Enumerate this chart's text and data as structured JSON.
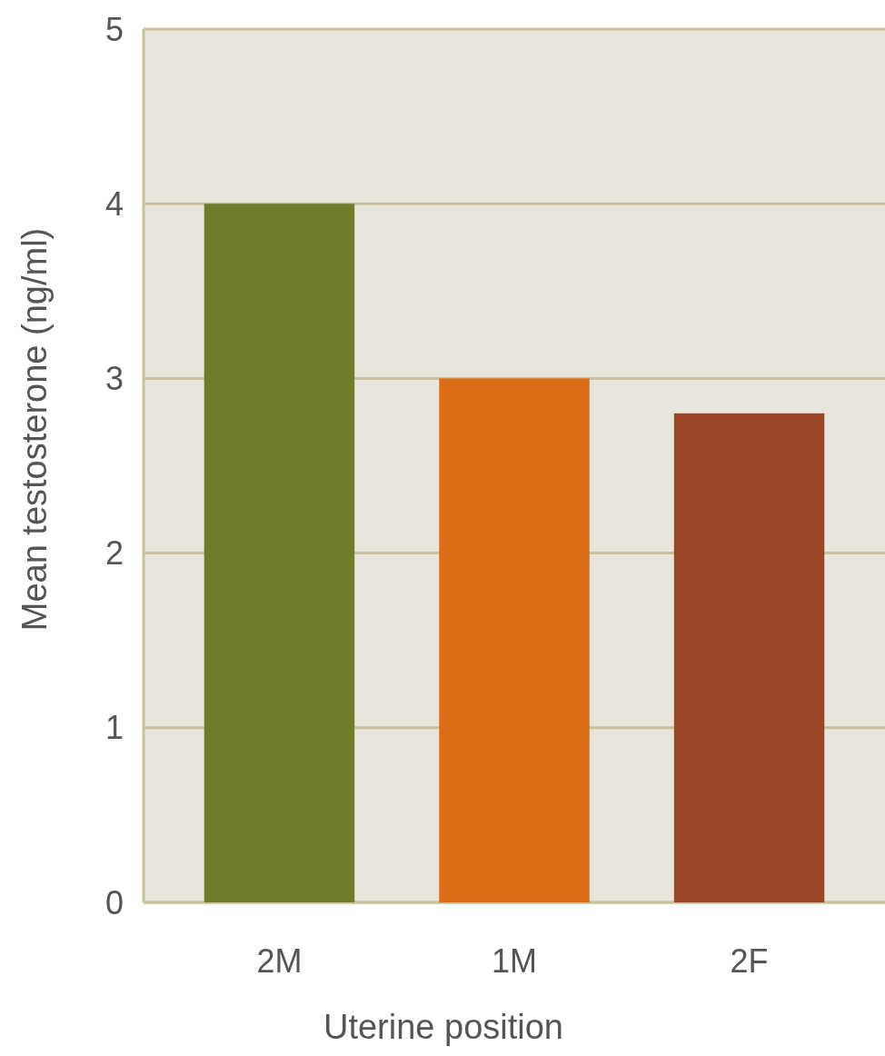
{
  "chart_data": {
    "type": "bar",
    "xlabel": "Uterine position",
    "ylabel": "Mean testosterone (ng/ml)",
    "categories": [
      "2M",
      "1M",
      "2F"
    ],
    "values": [
      4.0,
      3.0,
      2.8
    ],
    "colors": [
      "#6f7d2a",
      "#db6c17",
      "#9b4626"
    ],
    "ylim": [
      0,
      5
    ],
    "yticks": [
      0,
      1,
      2,
      3,
      4,
      5
    ],
    "grid": "y"
  }
}
